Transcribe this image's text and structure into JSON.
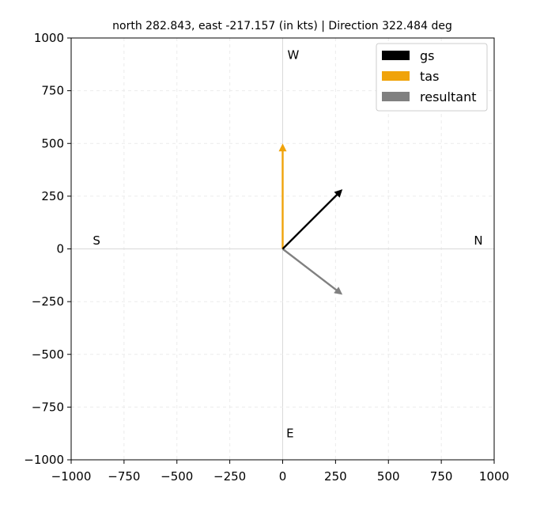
{
  "chart_data": {
    "type": "vector",
    "title": "north 282.843, east -217.157  (in kts) | Direction 322.484 deg",
    "xlim": [
      -1000,
      1000
    ],
    "ylim": [
      -1000,
      1000
    ],
    "xticks": [
      -1000,
      -750,
      -500,
      -250,
      0,
      250,
      500,
      750,
      1000
    ],
    "yticks": [
      -1000,
      -750,
      -500,
      -250,
      0,
      250,
      500,
      750,
      1000
    ],
    "xtick_labels": [
      "−1000",
      "−750",
      "−500",
      "−250",
      "0",
      "250",
      "500",
      "750",
      "1000"
    ],
    "ytick_labels": [
      "−1000",
      "−750",
      "−500",
      "−250",
      "0",
      "250",
      "500",
      "750",
      "1000"
    ],
    "grid": true,
    "legend_position": "top-right",
    "compass_labels": [
      {
        "text": "W",
        "x": 50,
        "y": 920
      },
      {
        "text": "S",
        "x": -880,
        "y": 40
      },
      {
        "text": "N",
        "x": 925,
        "y": 40
      },
      {
        "text": "E",
        "x": 35,
        "y": -875
      }
    ],
    "series": [
      {
        "name": "gs",
        "color": "#000000",
        "x0": 0,
        "y0": 0,
        "x1": 282.843,
        "y1": 282.843
      },
      {
        "name": "tas",
        "color": "#f0a30a",
        "x0": 0,
        "y0": 0,
        "x1": 0,
        "y1": 500
      },
      {
        "name": "resultant",
        "color": "#808080",
        "x0": 0,
        "y0": 0,
        "x1": 282.843,
        "y1": -217.157
      }
    ]
  }
}
